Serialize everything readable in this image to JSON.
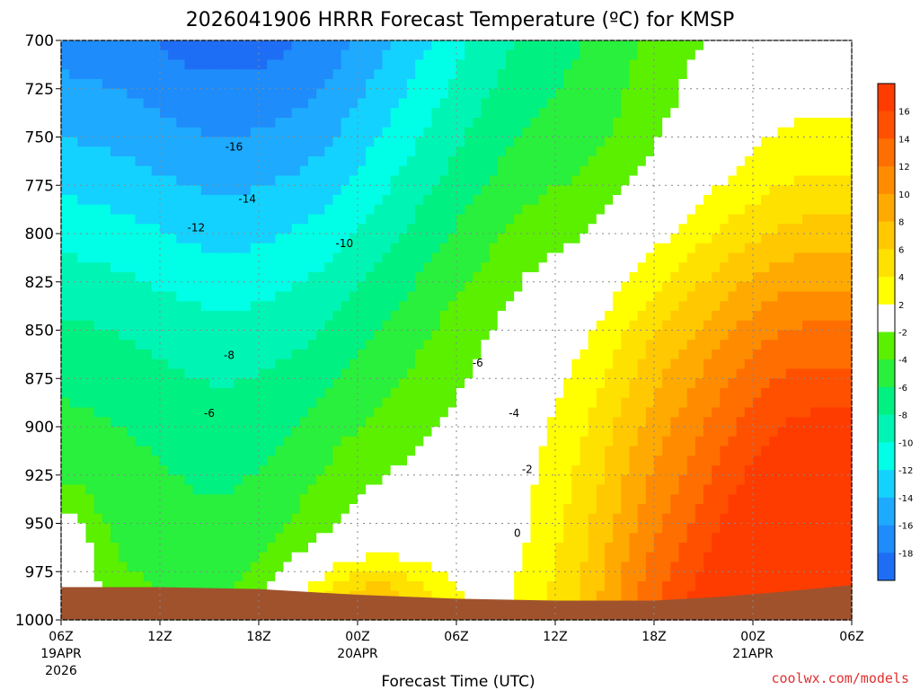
{
  "title": "2026041906 HRRR Forecast Temperature (ºC) for KMSP",
  "xlabel": "Forecast Time (UTC)",
  "credit": "coolwx.com/models",
  "chart_data": {
    "type": "heatmap",
    "title": "2026041906 HRRR Forecast Temperature (ºC) for KMSP",
    "xlabel": "Forecast Time (UTC)",
    "ylabel": "",
    "y_axis": {
      "ticks": [
        700,
        725,
        750,
        775,
        800,
        825,
        850,
        875,
        900,
        925,
        950,
        975,
        1000
      ],
      "ylim": [
        1000,
        700
      ]
    },
    "x_axis": {
      "ticks": [
        {
          "label": "06Z",
          "date": "19APR",
          "year": "2026"
        },
        {
          "label": "12Z"
        },
        {
          "label": "18Z"
        },
        {
          "label": "00Z",
          "date": "20APR"
        },
        {
          "label": "06Z"
        },
        {
          "label": "12Z"
        },
        {
          "label": "18Z"
        },
        {
          "label": "00Z",
          "date": "21APR"
        },
        {
          "label": "06Z"
        }
      ],
      "xlim_hours": [
        0,
        48
      ]
    },
    "grid": true,
    "colorbar": {
      "position": "right",
      "levels": [
        "-18",
        "-16",
        "-14",
        "-12",
        "-10",
        "-8",
        "-6",
        "-4",
        "-2",
        "2",
        "4",
        "6",
        "8",
        "10",
        "12",
        "14",
        "16"
      ],
      "bands": [
        {
          "range": [
            -20,
            -18
          ],
          "color": "#1e6ef5"
        },
        {
          "range": [
            -18,
            -16
          ],
          "color": "#1e8cfa"
        },
        {
          "range": [
            -16,
            -14
          ],
          "color": "#1eaaff"
        },
        {
          "range": [
            -14,
            -12
          ],
          "color": "#14d2ff"
        },
        {
          "range": [
            -12,
            -10
          ],
          "color": "#00ffe6"
        },
        {
          "range": [
            -10,
            -8
          ],
          "color": "#00f5b4"
        },
        {
          "range": [
            -8,
            -6
          ],
          "color": "#00f082"
        },
        {
          "range": [
            -6,
            -4
          ],
          "color": "#28f03c"
        },
        {
          "range": [
            -4,
            -2
          ],
          "color": "#5af000"
        },
        {
          "range": [
            -2,
            2
          ],
          "color": "#ffffff"
        },
        {
          "range": [
            2,
            4
          ],
          "color": "#ffff00"
        },
        {
          "range": [
            4,
            6
          ],
          "color": "#ffe100"
        },
        {
          "range": [
            6,
            8
          ],
          "color": "#ffc800"
        },
        {
          "range": [
            8,
            10
          ],
          "color": "#ffaa00"
        },
        {
          "range": [
            10,
            12
          ],
          "color": "#ff8c00"
        },
        {
          "range": [
            12,
            14
          ],
          "color": "#ff6e00"
        },
        {
          "range": [
            14,
            16
          ],
          "color": "#ff5000"
        },
        {
          "range": [
            16,
            18
          ],
          "color": "#ff3c00"
        }
      ]
    },
    "contour_labels": [
      {
        "text": "-16",
        "hour": 10.5,
        "hpa": 755
      },
      {
        "text": "-14",
        "hour": 11.3,
        "hpa": 782
      },
      {
        "text": "-12",
        "hour": 8.2,
        "hpa": 797
      },
      {
        "text": "-10",
        "hour": 17.2,
        "hpa": 805
      },
      {
        "text": "-8",
        "hour": 10.2,
        "hpa": 863
      },
      {
        "text": "-6",
        "hour": 9.0,
        "hpa": 893
      },
      {
        "text": "-6",
        "hour": 25.3,
        "hpa": 867
      },
      {
        "text": "-4",
        "hour": 27.5,
        "hpa": 893
      },
      {
        "text": "-2",
        "hour": 28.3,
        "hpa": 922
      },
      {
        "text": "0",
        "hour": 27.7,
        "hpa": 955
      }
    ],
    "profiles_note": "",
    "colors": {
      "ground": "#a0522d",
      "zero_line": "#c8145a",
      "grid": "#888888"
    }
  }
}
